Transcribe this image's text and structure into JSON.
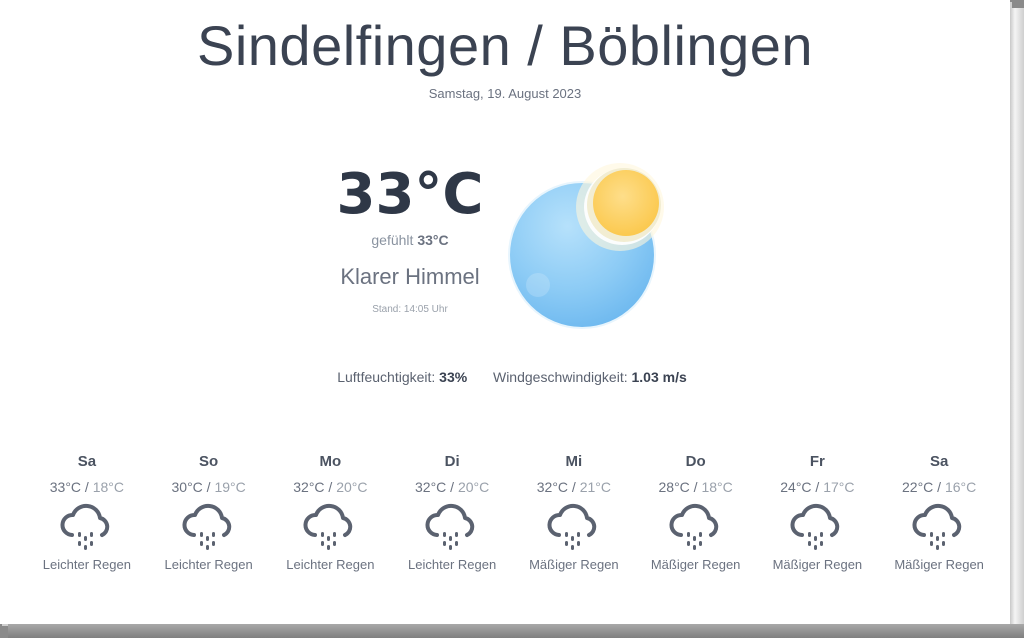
{
  "location": "Sindelfingen / Böblingen",
  "date": "Samstag, 19. August 2023",
  "current": {
    "temperature": "33°C",
    "feels_label": "gefühlt",
    "feels_value": "33°C",
    "condition": "Klarer Himmel",
    "updated": "Stand: 14:05 Uhr",
    "icon": "clear-sky-icon"
  },
  "stats": {
    "humidity_label": "Luftfeuchtigkeit:",
    "humidity_value": "33%",
    "wind_label": "Windgeschwindigkeit:",
    "wind_value": "1.03 m/s"
  },
  "forecast": [
    {
      "day": "Sa",
      "high": "33°C",
      "low": "18°C",
      "desc": "Leichter Regen",
      "icon": "rain-icon"
    },
    {
      "day": "So",
      "high": "30°C",
      "low": "19°C",
      "desc": "Leichter Regen",
      "icon": "rain-icon"
    },
    {
      "day": "Mo",
      "high": "32°C",
      "low": "20°C",
      "desc": "Leichter Regen",
      "icon": "rain-icon"
    },
    {
      "day": "Di",
      "high": "32°C",
      "low": "20°C",
      "desc": "Leichter Regen",
      "icon": "rain-icon"
    },
    {
      "day": "Mi",
      "high": "32°C",
      "low": "21°C",
      "desc": "Mäßiger Regen",
      "icon": "rain-icon"
    },
    {
      "day": "Do",
      "high": "28°C",
      "low": "18°C",
      "desc": "Mäßiger Regen",
      "icon": "rain-icon"
    },
    {
      "day": "Fr",
      "high": "24°C",
      "low": "17°C",
      "desc": "Mäßiger Regen",
      "icon": "rain-icon"
    },
    {
      "day": "Sa",
      "high": "22°C",
      "low": "16°C",
      "desc": "Mäßiger Regen",
      "icon": "rain-icon"
    }
  ],
  "colors": {
    "text_dark": "#2f3847",
    "text_muted": "#6b7280",
    "sky_blue": "#7fc4f5",
    "sun_yellow": "#fdd46a"
  }
}
